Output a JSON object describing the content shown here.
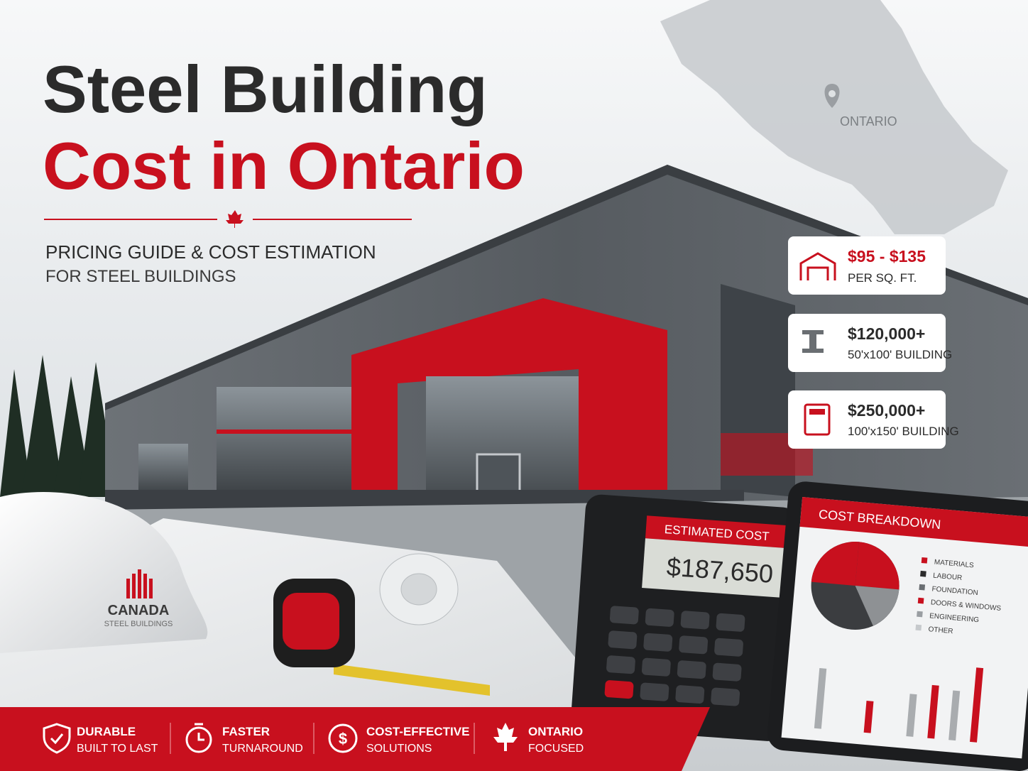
{
  "header": {
    "title_line1": "Steel Building",
    "title_line2": "Cost in Ontario",
    "subtitle_line1": "PRICING GUIDE & COST ESTIMATION",
    "subtitle_line2": "FOR STEEL BUILDINGS"
  },
  "map": {
    "label": "ONTARIO"
  },
  "cards": [
    {
      "value": "$95 - $135",
      "label": "PER SQ. FT."
    },
    {
      "value": "$120,000+",
      "label": "50'x100' BUILDING"
    },
    {
      "value": "$250,000+",
      "label": "100'x150' BUILDING"
    }
  ],
  "helmet": {
    "brand": "CANADA",
    "tagline": "STEEL BUILDINGS"
  },
  "calculator": {
    "header": "ESTIMATED COST",
    "display": "$187,650"
  },
  "tablet": {
    "title": "COST BREAKDOWN",
    "legend": [
      "MATERIALS",
      "LABOUR",
      "FOUNDATION",
      "DOORS & WINDOWS",
      "ENGINEERING",
      "OTHER"
    ]
  },
  "features": [
    {
      "title": "DURABLE",
      "subtitle": "BUILT TO LAST"
    },
    {
      "title": "FASTER",
      "subtitle": "TURNAROUND"
    },
    {
      "title": "COST-EFFECTIVE",
      "subtitle": "SOLUTIONS"
    },
    {
      "title": "ONTARIO",
      "subtitle": "FOCUSED"
    }
  ]
}
